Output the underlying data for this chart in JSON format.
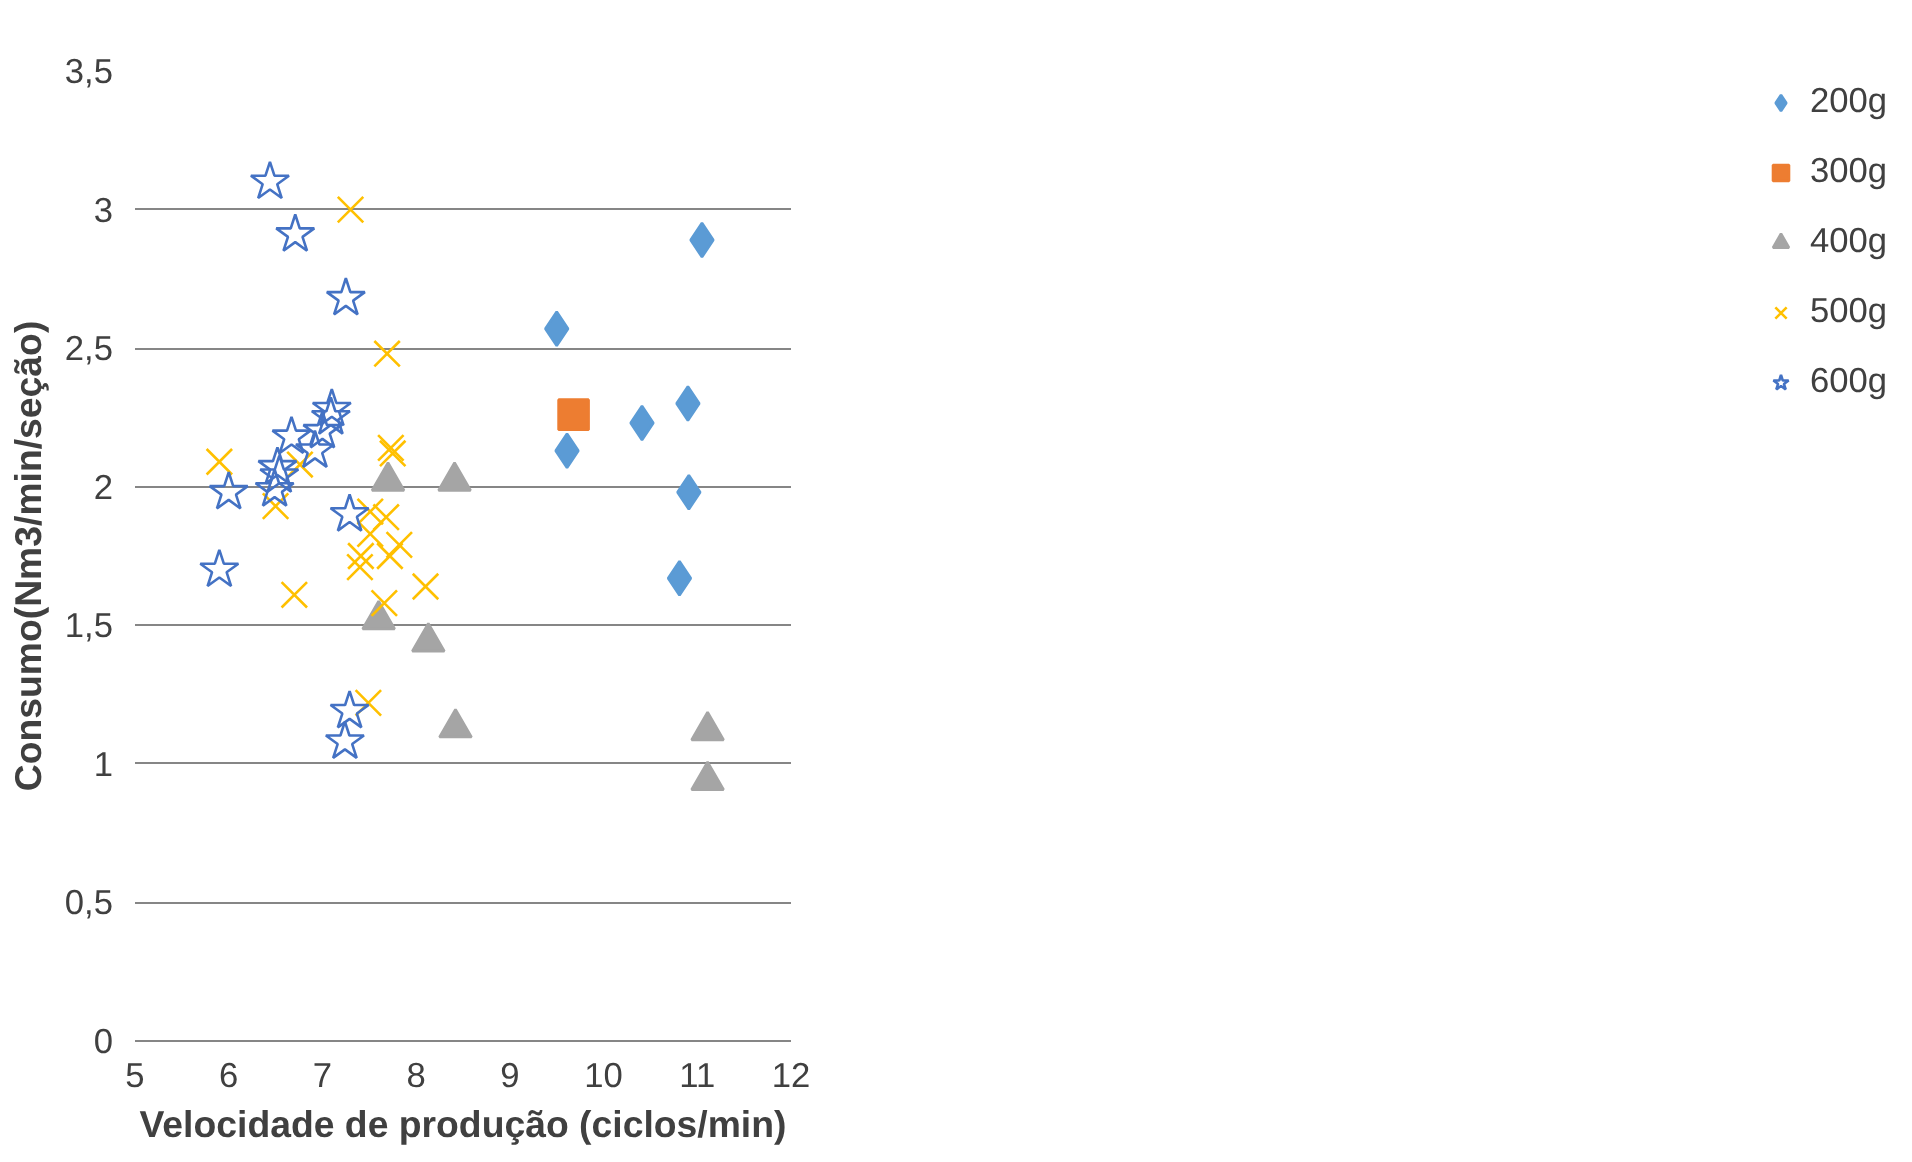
{
  "chart_data": {
    "type": "scatter",
    "xlabel": "Velocidade de produção (ciclos/min)",
    "ylabel": "Consumo(Nm3/min/seção)",
    "xlim": [
      5,
      12
    ],
    "xticks": [
      5,
      6,
      7,
      8,
      9,
      10,
      11,
      12
    ],
    "ylim": [
      0,
      3.5
    ],
    "yticks": [
      0,
      {
        "value": 0.5,
        "label": "0,5"
      },
      1,
      {
        "value": 1.5,
        "label": "1,5"
      },
      2,
      {
        "value": 2.5,
        "label": "2,5"
      },
      3,
      {
        "value": 3.5,
        "label": "3,5"
      }
    ],
    "grid": "y",
    "legend": "right",
    "series": [
      {
        "name": "200g",
        "color": "#5b9bd5",
        "marker": "diamond",
        "x": [
          9.5,
          9.61,
          10.41,
          10.9,
          10.91,
          10.81,
          11.05
        ],
        "values": [
          2.57,
          2.13,
          2.23,
          2.3,
          1.98,
          1.67,
          2.89
        ]
      },
      {
        "name": "300g",
        "color": "#ed7d31",
        "marker": "square",
        "x": [
          9.68
        ],
        "values": [
          2.26
        ]
      },
      {
        "name": "400g",
        "color": "#a5a5a5",
        "marker": "triangle",
        "x": [
          7.7,
          8.41,
          7.6,
          8.13,
          8.42,
          11.11,
          11.11
        ],
        "values": [
          2.02,
          2.02,
          1.52,
          1.44,
          1.13,
          1.12,
          0.94
        ]
      },
      {
        "name": "500g",
        "color": "#ffc000",
        "marker": "cross",
        "x": [
          7.3,
          7.69,
          5.9,
          7.73,
          7.75,
          6.76,
          6.5,
          7.51,
          7.68,
          7.51,
          7.41,
          7.4,
          7.72,
          7.82,
          7.66,
          8.1,
          6.7,
          7.49
        ],
        "values": [
          3.0,
          2.48,
          2.09,
          2.14,
          2.12,
          2.08,
          1.93,
          1.91,
          1.89,
          1.83,
          1.75,
          1.71,
          1.75,
          1.79,
          1.58,
          1.64,
          1.61,
          1.22
        ]
      },
      {
        "name": "600g",
        "color": "#4472c4",
        "marker": "star",
        "x": [
          6.44,
          6.71,
          7.25,
          7.1,
          7.09,
          7.0,
          6.92,
          6.67,
          6.52,
          6.54,
          6.49,
          6.0,
          5.9,
          7.29,
          7.29,
          7.24
        ],
        "values": [
          3.1,
          2.91,
          2.68,
          2.28,
          2.25,
          2.2,
          2.13,
          2.18,
          2.07,
          2.04,
          1.99,
          1.98,
          1.7,
          1.9,
          1.19,
          1.08
        ]
      }
    ]
  }
}
